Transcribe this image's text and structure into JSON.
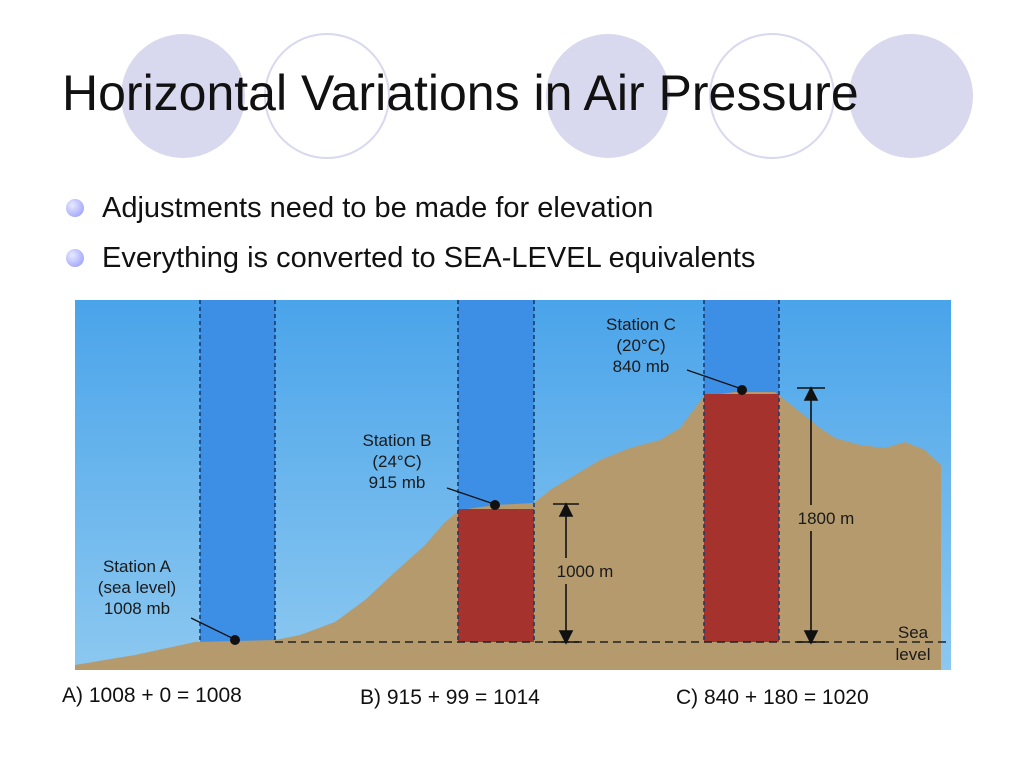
{
  "slide": {
    "title": "Horizontal Variations in Air Pressure",
    "bullets": [
      "Adjustments need to be made for elevation",
      "Everything is converted to SEA-LEVEL equivalents"
    ],
    "captions": {
      "a": "A) 1008 + 0 = 1008",
      "b": "B) 915 + 99 = 1014",
      "c": "C) 840 + 180 = 1020"
    }
  },
  "diagram": {
    "station_a": {
      "l1": "Station A",
      "l2": "(sea level)",
      "l3": "1008 mb"
    },
    "station_b": {
      "l1": "Station B",
      "l2": "(24°C)",
      "l3": "915 mb"
    },
    "station_c": {
      "l1": "Station C",
      "l2": "(20°C)",
      "l3": "840 mb"
    },
    "height_b": "1000 m",
    "height_c": "1800 m",
    "sea_level": {
      "l1": "Sea",
      "l2": "level"
    }
  },
  "colors": {
    "accent_circle": "#d8d8ee",
    "sky": "#5aaee8",
    "column": "#3d8fe6",
    "ground": "#b49a6d",
    "fill_column": "#a5322c"
  }
}
